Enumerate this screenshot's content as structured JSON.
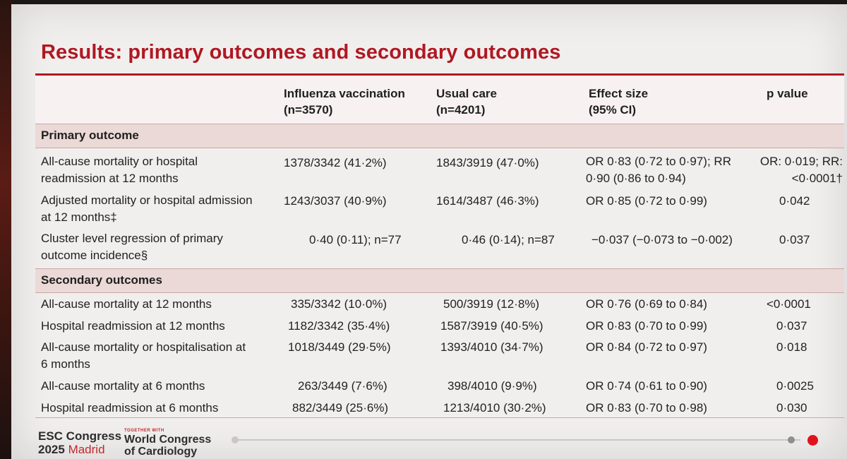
{
  "slide": {
    "title": "Results: primary outcomes and secondary outcomes"
  },
  "table": {
    "headers": {
      "vaccination": [
        "Influenza vaccination",
        "(n=3570)"
      ],
      "usual_care": [
        "Usual care",
        "(n=4201)"
      ],
      "effect_size": [
        "Effect size",
        "(95% CI)"
      ],
      "p_value": "p value"
    },
    "primary_section": "Primary outcome",
    "primary_rows": [
      {
        "label": "All-cause mortality or hospital readmission at 12 months",
        "vaccination": "1378/3342 (41·2%)",
        "usual_care": "1843/3919 (47·0%)",
        "effect": "OR 0·83 (0·72 to 0·97); RR 0·90 (0·86 to 0·94)",
        "p": "OR: 0·019; RR: <0·0001†"
      },
      {
        "label": "Adjusted mortality or hospital admission at 12 months‡",
        "vaccination": "1243/3037 (40·9%)",
        "usual_care": "1614/3487 (46·3%)",
        "effect": "OR 0·85 (0·72 to 0·99)",
        "p": "0·042"
      },
      {
        "label": "Cluster level regression of primary outcome incidence§",
        "vaccination": "0·40 (0·11); n=77",
        "usual_care": "0·46 (0·14); n=87",
        "effect": "−0·037 (−0·073 to −0·002)",
        "p": "0·037"
      }
    ],
    "secondary_section": "Secondary outcomes",
    "secondary_rows": [
      {
        "label": "All-cause mortality at 12 months",
        "vaccination": "335/3342 (10·0%)",
        "usual_care": "500/3919 (12·8%)",
        "effect": "OR 0·76 (0·69 to 0·84)",
        "p": "<0·0001"
      },
      {
        "label": "Hospital readmission at 12 months",
        "vaccination": "1182/3342 (35·4%)",
        "usual_care": "1587/3919 (40·5%)",
        "effect": "OR 0·83 (0·70 to 0·99)",
        "p": "0·037"
      },
      {
        "label": "All-cause mortality or hospitalisation at 6 months",
        "vaccination": "1018/3449 (29·5%)",
        "usual_care": "1393/4010 (34·7%)",
        "effect": "OR 0·84 (0·72 to 0·97)",
        "p": "0·018"
      },
      {
        "label": "All-cause mortality at 6 months",
        "vaccination": "263/3449 (7·6%)",
        "usual_care": "398/4010 (9·9%)",
        "effect": "OR 0·74 (0·61 to 0·90)",
        "p": "0·0025"
      },
      {
        "label": "Hospital readmission at 6 months",
        "vaccination": "882/3449 (25·6%)",
        "usual_care": "1213/4010 (30·2%)",
        "effect": "OR 0·83 (0·70 to 0·98)",
        "p": "0·030"
      }
    ]
  },
  "footer": {
    "esc_line1": "ESC Congress",
    "esc_year": "2025",
    "esc_city": "Madrid",
    "wcc_tag": "TOGETHER WITH",
    "wcc_line1": "World Congress",
    "wcc_line2": "of Cardiology"
  },
  "colors": {
    "title_red": "#b01822",
    "section_bg": "#ead9d6",
    "progress_current": "#e2121a"
  }
}
